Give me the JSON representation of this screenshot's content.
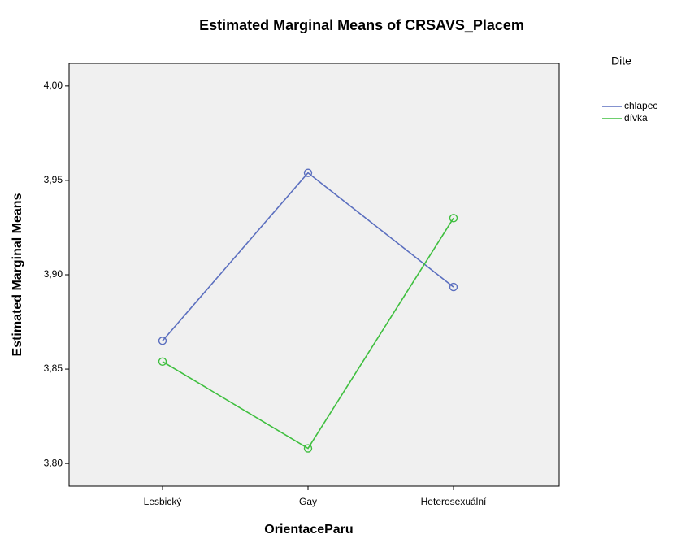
{
  "chart_data": {
    "type": "line",
    "title": "Estimated Marginal Means of CRSAVS_Placem",
    "x_label": "OrientaceParu",
    "y_label": "Estimated Marginal Means",
    "legend_title": "Dite",
    "categories": [
      "Lesbický",
      "Gay",
      "Heterosexuální"
    ],
    "series": [
      {
        "name": "chlapec",
        "color": "#5b6fbf",
        "values": [
          3.865,
          3.954,
          3.8935
        ]
      },
      {
        "name": "dívka",
        "color": "#3fbf3f",
        "values": [
          3.854,
          3.808,
          3.93
        ]
      }
    ],
    "ylim": [
      3.788,
      4.012
    ],
    "yticks": [
      {
        "value": 3.8,
        "label": "3,80"
      },
      {
        "value": 3.85,
        "label": "3,85"
      },
      {
        "value": 3.9,
        "label": "3,90"
      },
      {
        "value": 3.95,
        "label": "3,95"
      },
      {
        "value": 4.0,
        "label": "4,00"
      }
    ],
    "legend": "right"
  }
}
